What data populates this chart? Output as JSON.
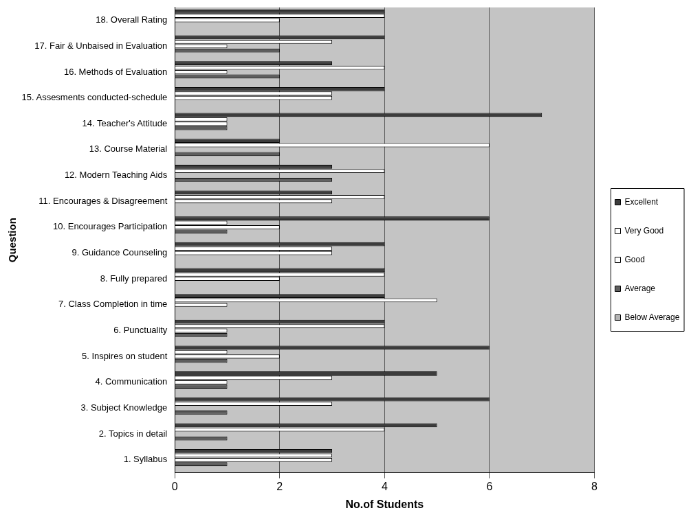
{
  "chart_data": {
    "type": "bar",
    "orientation": "horizontal",
    "xlabel": "No.of Students",
    "ylabel": "Question",
    "categories": [
      "18. Overall Rating",
      "17. Fair & Unbaised in Evaluation",
      "16. Methods of Evaluation",
      "15. Assesments conducted-schedule",
      "14. Teacher's Attitude",
      "13. Course Material",
      "12. Modern Teaching Aids",
      "11. Encourages & Disagreement",
      "10. Encourages Participation",
      "9. Guidance Counseling",
      "8. Fully prepared",
      "7. Class Completion in time",
      "6. Punctuality",
      "5. Inspires on student",
      "4. Communication",
      "3. Subject Knowledge",
      "2. Topics in detail",
      "1. Syllabus"
    ],
    "series": [
      {
        "name": "Excellent",
        "color": "#3c3c3c",
        "values": [
          4,
          4,
          3,
          4,
          7,
          2,
          3,
          3,
          6,
          4,
          4,
          4,
          4,
          6,
          5,
          6,
          5,
          3
        ]
      },
      {
        "name": "Very Good",
        "color": "#ffffff",
        "values": [
          4,
          3,
          4,
          3,
          1,
          6,
          4,
          4,
          1,
          3,
          4,
          5,
          4,
          1,
          3,
          3,
          4,
          3
        ]
      },
      {
        "name": "Good",
        "color": "#ffffff",
        "values": [
          2,
          1,
          1,
          3,
          1,
          0,
          0,
          3,
          2,
          3,
          2,
          1,
          1,
          2,
          1,
          0,
          0,
          3
        ]
      },
      {
        "name": "Average",
        "color": "#5e5e5e",
        "values": [
          0,
          2,
          2,
          0,
          1,
          2,
          3,
          0,
          1,
          0,
          0,
          0,
          1,
          1,
          1,
          1,
          1,
          1
        ]
      },
      {
        "name": "Below Average",
        "color": "#b4b4b4",
        "values": [
          0,
          0,
          0,
          0,
          0,
          0,
          0,
          0,
          0,
          0,
          0,
          0,
          0,
          0,
          0,
          0,
          0,
          0
        ]
      }
    ],
    "xlim": [
      0,
      8
    ],
    "xticks": [
      0,
      2,
      4,
      6,
      8
    ],
    "grid": "x",
    "legend": "right"
  }
}
